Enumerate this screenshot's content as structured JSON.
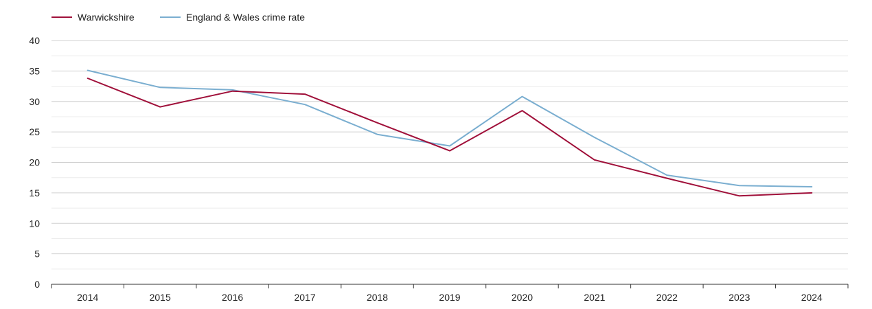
{
  "chart_data": {
    "type": "line",
    "x": [
      "2014",
      "2015",
      "2016",
      "2017",
      "2018",
      "2019",
      "2020",
      "2021",
      "2022",
      "2023",
      "2024"
    ],
    "series": [
      {
        "name": "Warwickshire",
        "color": "#a0103a",
        "values": [
          33.8,
          29.1,
          31.7,
          31.2,
          26.5,
          21.9,
          28.5,
          20.4,
          17.4,
          14.5,
          15.0
        ]
      },
      {
        "name": "England & Wales crime rate",
        "color": "#7aaed0",
        "values": [
          35.1,
          32.3,
          31.9,
          29.5,
          24.6,
          22.7,
          30.8,
          24.1,
          17.9,
          16.2,
          16.0
        ]
      }
    ],
    "yticks": [
      0,
      5,
      10,
      15,
      20,
      25,
      30,
      35,
      40
    ],
    "ylim": [
      0,
      40
    ],
    "grid": true,
    "legend_position": "top-left"
  }
}
